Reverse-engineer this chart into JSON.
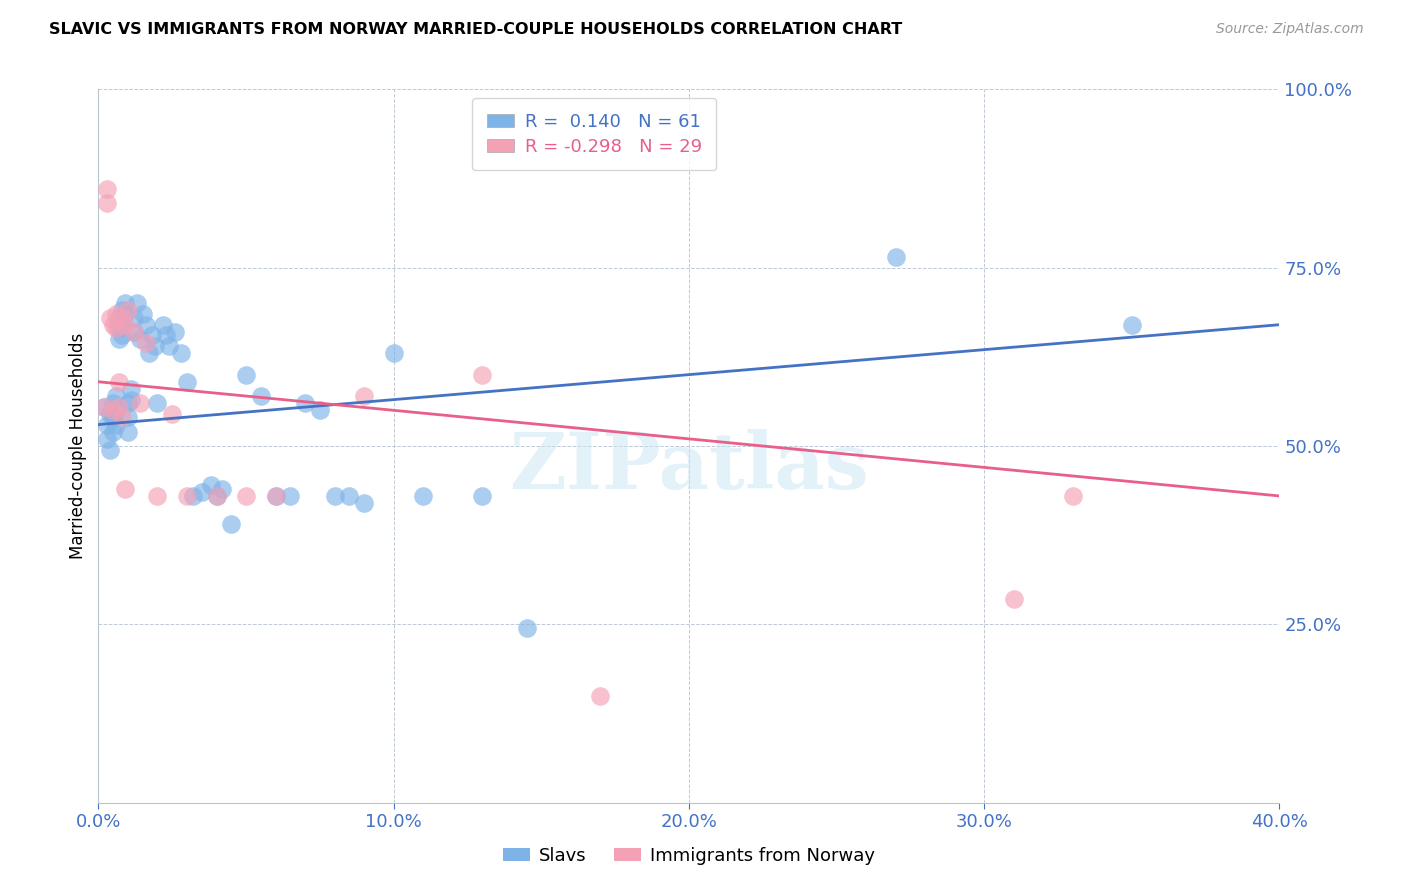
{
  "title": "SLAVIC VS IMMIGRANTS FROM NORWAY MARRIED-COUPLE HOUSEHOLDS CORRELATION CHART",
  "source": "Source: ZipAtlas.com",
  "ylabel": "Married-couple Households",
  "xmin": 0.0,
  "xmax": 0.4,
  "ymin": 0.0,
  "ymax": 1.0,
  "xtick_labels": [
    "0.0%",
    "10.0%",
    "20.0%",
    "30.0%",
    "40.0%"
  ],
  "xtick_vals": [
    0.0,
    0.1,
    0.2,
    0.3,
    0.4
  ],
  "ytick_labels": [
    "25.0%",
    "50.0%",
    "75.0%",
    "100.0%"
  ],
  "ytick_vals": [
    0.25,
    0.5,
    0.75,
    1.0
  ],
  "blue_R": 0.14,
  "blue_N": 61,
  "pink_R": -0.298,
  "pink_N": 29,
  "blue_color": "#7eb3e8",
  "pink_color": "#f4a0b5",
  "blue_line_color": "#4472c4",
  "pink_line_color": "#e85f8a",
  "legend_label_blue": "Slavs",
  "legend_label_pink": "Immigrants from Norway",
  "watermark": "ZIPatlas",
  "blue_scatter_x": [
    0.002,
    0.003,
    0.003,
    0.004,
    0.004,
    0.005,
    0.005,
    0.005,
    0.006,
    0.006,
    0.006,
    0.007,
    0.007,
    0.007,
    0.008,
    0.008,
    0.008,
    0.009,
    0.009,
    0.01,
    0.01,
    0.01,
    0.011,
    0.011,
    0.012,
    0.012,
    0.013,
    0.014,
    0.015,
    0.016,
    0.017,
    0.018,
    0.019,
    0.02,
    0.022,
    0.023,
    0.024,
    0.026,
    0.028,
    0.03,
    0.032,
    0.035,
    0.038,
    0.04,
    0.042,
    0.045,
    0.05,
    0.055,
    0.06,
    0.065,
    0.07,
    0.075,
    0.08,
    0.085,
    0.09,
    0.1,
    0.11,
    0.13,
    0.145,
    0.27,
    0.35
  ],
  "blue_scatter_y": [
    0.555,
    0.53,
    0.51,
    0.545,
    0.495,
    0.56,
    0.54,
    0.52,
    0.57,
    0.55,
    0.53,
    0.68,
    0.665,
    0.65,
    0.69,
    0.67,
    0.655,
    0.7,
    0.685,
    0.56,
    0.54,
    0.52,
    0.58,
    0.565,
    0.68,
    0.66,
    0.7,
    0.65,
    0.685,
    0.67,
    0.63,
    0.655,
    0.64,
    0.56,
    0.67,
    0.655,
    0.64,
    0.66,
    0.63,
    0.59,
    0.43,
    0.435,
    0.445,
    0.43,
    0.44,
    0.39,
    0.6,
    0.57,
    0.43,
    0.43,
    0.56,
    0.55,
    0.43,
    0.43,
    0.42,
    0.63,
    0.43,
    0.43,
    0.245,
    0.765,
    0.67
  ],
  "pink_scatter_x": [
    0.002,
    0.003,
    0.003,
    0.004,
    0.005,
    0.005,
    0.006,
    0.006,
    0.007,
    0.007,
    0.008,
    0.008,
    0.009,
    0.009,
    0.01,
    0.012,
    0.014,
    0.016,
    0.02,
    0.025,
    0.03,
    0.04,
    0.05,
    0.06,
    0.09,
    0.13,
    0.17,
    0.31,
    0.33
  ],
  "pink_scatter_y": [
    0.555,
    0.86,
    0.84,
    0.68,
    0.67,
    0.55,
    0.685,
    0.665,
    0.59,
    0.555,
    0.54,
    0.68,
    0.67,
    0.44,
    0.69,
    0.66,
    0.56,
    0.645,
    0.43,
    0.545,
    0.43,
    0.43,
    0.43,
    0.43,
    0.57,
    0.6,
    0.15,
    0.285,
    0.43
  ],
  "blue_line_x0": 0.0,
  "blue_line_x1": 0.4,
  "blue_line_y0": 0.53,
  "blue_line_y1": 0.67,
  "pink_line_x0": 0.0,
  "pink_line_x1": 0.4,
  "pink_line_y0": 0.59,
  "pink_line_y1": 0.43
}
